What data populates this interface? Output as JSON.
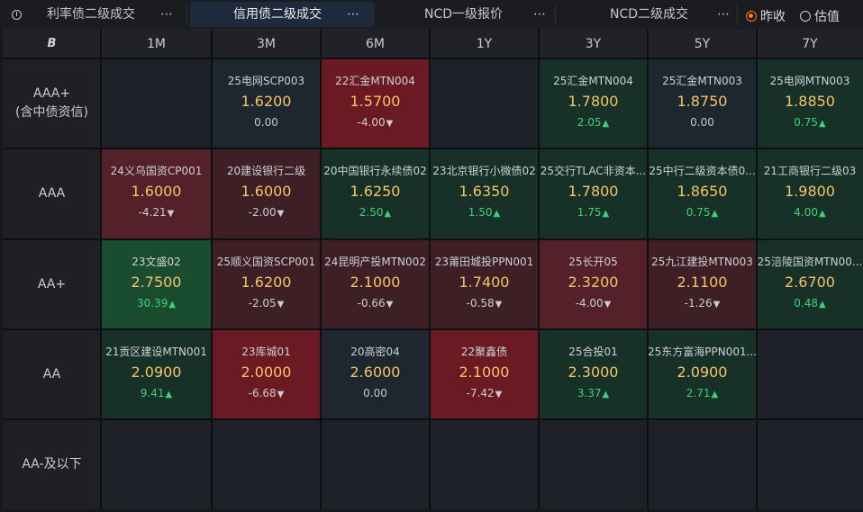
{
  "tabs": [
    {
      "label": "利率债二级成交",
      "active": false,
      "more": "⋯"
    },
    {
      "label": "信用债二级成交",
      "active": true,
      "more": "⋯"
    },
    {
      "label": "NCD一级报价",
      "active": false,
      "more": "⋯"
    },
    {
      "label": "NCD二级成交",
      "active": false,
      "more": "⋯"
    }
  ],
  "radios": [
    {
      "label": "昨收",
      "selected": true
    },
    {
      "label": "估值",
      "selected": false
    }
  ],
  "corner_logo": "B",
  "columns": [
    "1M",
    "3M",
    "6M",
    "1Y",
    "3Y",
    "5Y",
    "7Y"
  ],
  "rows": [
    {
      "label_lines": [
        "AAA+",
        "(含中债资信)"
      ],
      "cells": [
        null,
        {
          "name": "25电网SCP003",
          "yield": "1.6200",
          "change": "0.00",
          "dir": "flat",
          "tone": "neutral"
        },
        {
          "name": "22汇金MTN004",
          "yield": "1.5700",
          "change": "-4.00",
          "dir": "down",
          "tone": "red-strong"
        },
        null,
        {
          "name": "25汇金MTN004",
          "yield": "1.7800",
          "change": "2.05",
          "dir": "up",
          "tone": "green"
        },
        {
          "name": "25汇金MTN003",
          "yield": "1.8750",
          "change": "0.00",
          "dir": "flat",
          "tone": "neutral"
        },
        {
          "name": "25电网MTN003",
          "yield": "1.8850",
          "change": "0.75",
          "dir": "up",
          "tone": "green"
        }
      ]
    },
    {
      "label_lines": [
        "AAA"
      ],
      "cells": [
        {
          "name": "24义乌国资CP001",
          "yield": "1.6000",
          "change": "-4.21",
          "dir": "down",
          "tone": "red"
        },
        {
          "name": "20建设银行二级",
          "yield": "1.6000",
          "change": "-2.00",
          "dir": "down",
          "tone": "red-dark"
        },
        {
          "name": "20中国银行永续债02",
          "yield": "1.6250",
          "change": "2.50",
          "dir": "up",
          "tone": "green"
        },
        {
          "name": "23北京银行小微债02",
          "yield": "1.6350",
          "change": "1.50",
          "dir": "up",
          "tone": "green"
        },
        {
          "name": "25交行TLAC非资本...",
          "yield": "1.7800",
          "change": "1.75",
          "dir": "up",
          "tone": "green"
        },
        {
          "name": "25中行二级资本债0...",
          "yield": "1.8650",
          "change": "0.75",
          "dir": "up",
          "tone": "green"
        },
        {
          "name": "21工商银行二级03",
          "yield": "1.9800",
          "change": "4.00",
          "dir": "up",
          "tone": "green"
        }
      ]
    },
    {
      "label_lines": [
        "AA+"
      ],
      "cells": [
        {
          "name": "23文盛02",
          "yield": "2.7500",
          "change": "30.39",
          "dir": "up",
          "tone": "green-strong"
        },
        {
          "name": "25顺义国资SCP001",
          "yield": "1.6200",
          "change": "-2.05",
          "dir": "down",
          "tone": "red-dark"
        },
        {
          "name": "24昆明产投MTN002",
          "yield": "2.1000",
          "change": "-0.66",
          "dir": "down",
          "tone": "red-dark"
        },
        {
          "name": "23莆田城投PPN001",
          "yield": "1.7400",
          "change": "-0.58",
          "dir": "down",
          "tone": "red-dark"
        },
        {
          "name": "25长开05",
          "yield": "2.3200",
          "change": "-4.00",
          "dir": "down",
          "tone": "red"
        },
        {
          "name": "25九江建投MTN003",
          "yield": "2.1100",
          "change": "-1.26",
          "dir": "down",
          "tone": "red-dark"
        },
        {
          "name": "25涪陵国资MTN00...",
          "yield": "2.6700",
          "change": "0.48",
          "dir": "up",
          "tone": "green"
        }
      ]
    },
    {
      "label_lines": [
        "AA"
      ],
      "cells": [
        {
          "name": "21贡区建设MTN001",
          "yield": "2.0900",
          "change": "9.41",
          "dir": "up",
          "tone": "green"
        },
        {
          "name": "23库城01",
          "yield": "2.0000",
          "change": "-6.68",
          "dir": "down",
          "tone": "red-strong"
        },
        {
          "name": "20高密04",
          "yield": "2.6000",
          "change": "0.00",
          "dir": "flat",
          "tone": "neutral"
        },
        {
          "name": "22聚鑫债",
          "yield": "2.1000",
          "change": "-7.42",
          "dir": "down",
          "tone": "red-strong"
        },
        {
          "name": "25合投01",
          "yield": "2.3000",
          "change": "3.37",
          "dir": "up",
          "tone": "green"
        },
        {
          "name": "25东方富海PPN001...",
          "yield": "2.0900",
          "change": "2.71",
          "dir": "up",
          "tone": "green"
        },
        null
      ]
    },
    {
      "label_lines": [
        "AA-及以下"
      ],
      "cells": [
        null,
        null,
        null,
        null,
        null,
        null,
        null
      ]
    }
  ],
  "colors": {
    "empty": "#1e2228",
    "neutral": "#1e2630",
    "green": "#173129",
    "green-strong": "#1a4d30",
    "red": "#54212a",
    "red-dark": "#3e1f26",
    "red-strong": "#6b1a23",
    "yield": "#f3c565",
    "up": "#3fd07a",
    "down": "#ff5a5a",
    "accent": "#ff7a1a"
  },
  "arrows": {
    "up": "▲",
    "down": "▼"
  }
}
